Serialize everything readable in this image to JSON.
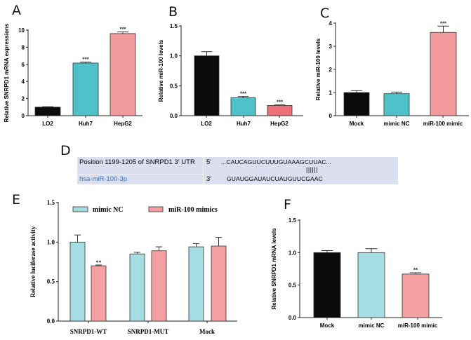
{
  "panel_labels": {
    "a": "A",
    "b": "B",
    "c": "C",
    "d": "D",
    "e": "E",
    "f": "F"
  },
  "colors": {
    "black": "#0b0b0b",
    "teal": "#4fc1c9",
    "pink": "#f09a9c",
    "red": "#ee6f75",
    "light_teal": "#a6dde2",
    "light_pink": "#f4a0a2"
  },
  "panel_d": {
    "target_label": "Position 1199-1205 of SNRPD1 3' UTR",
    "target_end": "5'",
    "target_seq": "...CAUCAGUUCUUUGUAAAGCUUAC...",
    "pairing": "||||||",
    "mirna_label": "hsa-miR-100-3p",
    "mirna_end": "3'",
    "mirna_seq": "GUAUGGAUAUCUAUGUUCGAAC"
  },
  "chart_data": [
    {
      "id": "a",
      "type": "bar",
      "ylabel": "Relative SNRPD1 mRNA expressions",
      "ylim": [
        0,
        10
      ],
      "yticks": [
        "0",
        "2",
        "4",
        "6",
        "8",
        "10"
      ],
      "categories": [
        "LO2",
        "Huh7",
        "HepG2"
      ],
      "values": [
        1.0,
        6.15,
        9.6
      ],
      "errors": [
        0.05,
        0.12,
        0.2
      ],
      "significance": [
        "",
        "***",
        "***"
      ],
      "bar_colors": [
        "black",
        "teal",
        "pink"
      ]
    },
    {
      "id": "b",
      "type": "bar",
      "ylabel": "Relative miR-100 levels",
      "ylim": [
        0,
        1.5
      ],
      "yticks": [
        "0.0",
        "0.5",
        "1.0",
        "1.5"
      ],
      "categories": [
        "LO2",
        "Huh7",
        "HepG2"
      ],
      "values": [
        1.0,
        0.3,
        0.17
      ],
      "errors": [
        0.07,
        0.02,
        0.01
      ],
      "significance": [
        "",
        "***",
        "***"
      ],
      "bar_colors": [
        "black",
        "teal",
        "red"
      ]
    },
    {
      "id": "c",
      "type": "bar",
      "ylabel": "Relative miR-100 levels",
      "ylim": [
        0,
        4
      ],
      "yticks": [
        "0",
        "1",
        "2",
        "3",
        "4"
      ],
      "categories": [
        "Mock",
        "mimic NC",
        "miR-100 mimic"
      ],
      "values": [
        1.0,
        0.95,
        3.6
      ],
      "errors": [
        0.08,
        0.07,
        0.27
      ],
      "significance": [
        "",
        "",
        "***"
      ],
      "bar_colors": [
        "black",
        "teal",
        "pink"
      ]
    },
    {
      "id": "e",
      "type": "bar",
      "ylabel": "Relative luciferase activity",
      "ylim": [
        0,
        1.5
      ],
      "yticks": [
        "0.0",
        "0.5",
        "1.0",
        "1.5"
      ],
      "categories": [
        "SNRPD1-WT",
        "SNRPD1-MUT",
        "Mock"
      ],
      "legend": "top",
      "series": [
        {
          "name": "mimic NC",
          "values": [
            1.0,
            0.85,
            0.94
          ],
          "errors": [
            0.09,
            0.02,
            0.04
          ],
          "significance": [
            "",
            "",
            ""
          ],
          "color": "light_teal"
        },
        {
          "name": "miR-100 mimics",
          "values": [
            0.7,
            0.89,
            0.95
          ],
          "errors": [
            0.01,
            0.05,
            0.11
          ],
          "significance": [
            "**",
            "",
            ""
          ],
          "color": "light_pink"
        }
      ]
    },
    {
      "id": "f",
      "type": "bar",
      "ylabel": "Relative SNRPD1 mRNA levels",
      "ylim": [
        0,
        1.5
      ],
      "yticks": [
        "0.0",
        "0.5",
        "1.0",
        "1.5"
      ],
      "categories": [
        "Mock",
        "mimic NC",
        "miR-100 mimic"
      ],
      "values": [
        1.0,
        1.0,
        0.67
      ],
      "errors": [
        0.03,
        0.06,
        0.02
      ],
      "significance": [
        "",
        "",
        "**"
      ],
      "bar_colors": [
        "black",
        "light_teal",
        "light_pink"
      ]
    }
  ]
}
